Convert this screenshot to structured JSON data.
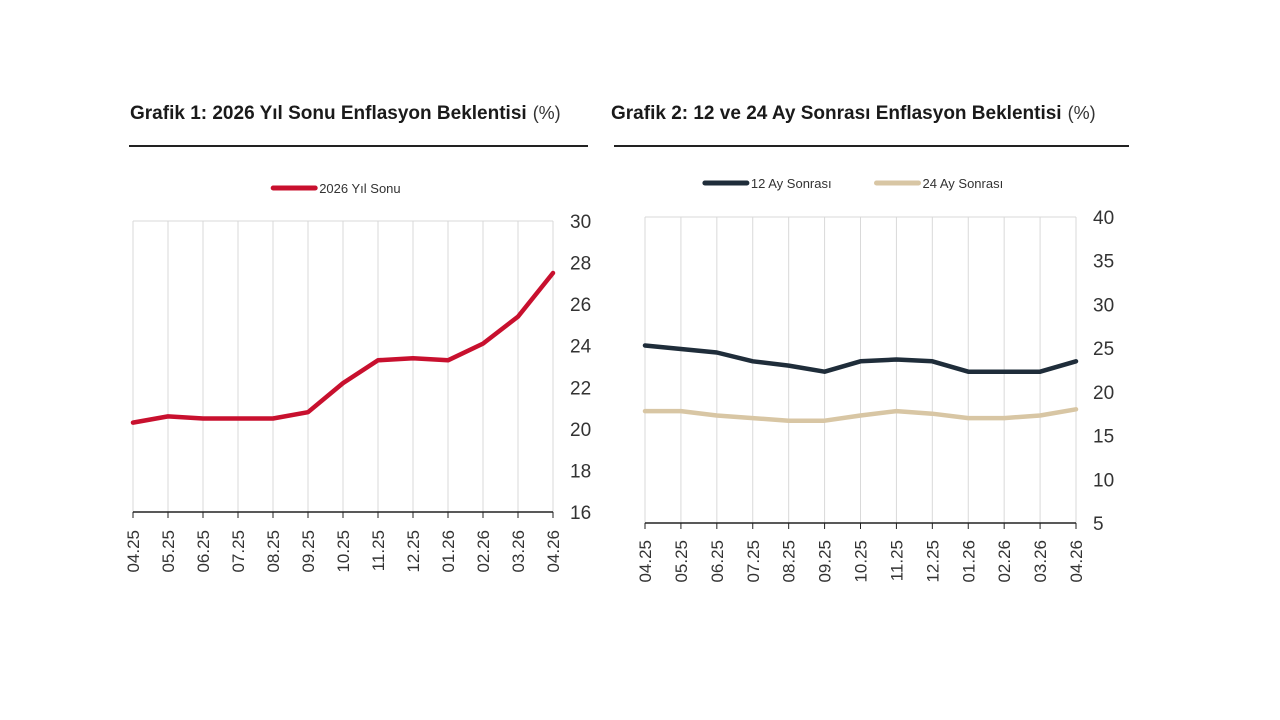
{
  "chart_data": [
    {
      "type": "line",
      "title": "Grafik 1: 2026 Yıl Sonu Enflasyon Beklentisi",
      "title_unit": "(%)",
      "categories": [
        "04.25",
        "05.25",
        "06.25",
        "07.25",
        "08.25",
        "09.25",
        "10.25",
        "11.25",
        "12.25",
        "01.26",
        "02.26",
        "03.26",
        "04.26"
      ],
      "series": [
        {
          "name": "2026 Yıl Sonu",
          "color": "#c8102e",
          "values": [
            20.3,
            20.6,
            20.5,
            20.5,
            20.5,
            20.8,
            22.2,
            23.3,
            23.4,
            23.3,
            24.1,
            25.4,
            27.5
          ]
        }
      ],
      "ylim": [
        16,
        30
      ],
      "yticks": [
        16,
        18,
        20,
        22,
        24,
        26,
        28,
        30
      ],
      "y_axis_side": "right",
      "grid": "vertical",
      "legend_position": "top-center"
    },
    {
      "type": "line",
      "title": "Grafik 2: 12 ve 24 Ay Sonrası Enflasyon Beklentisi",
      "title_unit": "(%)",
      "categories": [
        "04.25",
        "05.25",
        "06.25",
        "07.25",
        "08.25",
        "09.25",
        "10.25",
        "11.25",
        "12.25",
        "01.26",
        "02.26",
        "03.26",
        "04.26"
      ],
      "series": [
        {
          "name": "12 Ay Sonrası",
          "color": "#1f2d3a",
          "values": [
            25.3,
            24.9,
            24.5,
            23.5,
            23.0,
            22.3,
            23.5,
            23.7,
            23.5,
            22.3,
            22.3,
            22.3,
            23.5
          ]
        },
        {
          "name": "24 Ay Sonrası",
          "color": "#d8c6a4",
          "values": [
            17.8,
            17.8,
            17.3,
            17.0,
            16.7,
            16.7,
            17.3,
            17.8,
            17.5,
            17.0,
            17.0,
            17.3,
            18.0
          ]
        }
      ],
      "ylim": [
        5,
        40
      ],
      "yticks": [
        5,
        10,
        15,
        20,
        25,
        30,
        35,
        40
      ],
      "y_axis_side": "right",
      "grid": "vertical",
      "legend_position": "top-center"
    }
  ]
}
